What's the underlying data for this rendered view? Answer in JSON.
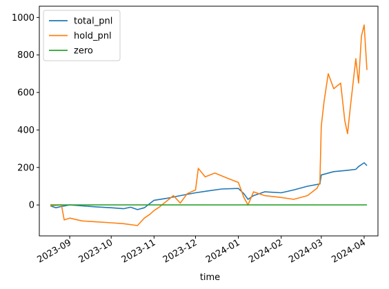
{
  "chart_data": {
    "type": "line",
    "title": "",
    "xlabel": "time",
    "ylabel": "",
    "grid": false,
    "legend_position": "top-left",
    "xlim": [
      "2023-08-10",
      "2024-04-11"
    ],
    "ylim": [
      -165,
      1060
    ],
    "x_ticks": [
      "2023-09",
      "2023-10",
      "2023-11",
      "2023-12",
      "2024-01",
      "2024-02",
      "2024-03",
      "2024-04"
    ],
    "x_tick_dates": [
      "2023-09-01",
      "2023-10-01",
      "2023-11-01",
      "2023-12-01",
      "2024-01-01",
      "2024-02-01",
      "2024-03-01",
      "2024-04-01"
    ],
    "y_ticks": [
      0,
      200,
      400,
      600,
      800,
      1000
    ],
    "series": [
      {
        "name": "total_pnl",
        "color": "#1f77b4",
        "x": [
          "2023-08-18",
          "2023-08-22",
          "2023-08-26",
          "2023-09-01",
          "2023-09-10",
          "2023-09-20",
          "2023-10-01",
          "2023-10-10",
          "2023-10-15",
          "2023-10-20",
          "2023-10-25",
          "2023-11-01",
          "2023-11-10",
          "2023-11-20",
          "2023-12-01",
          "2023-12-10",
          "2023-12-20",
          "2024-01-01",
          "2024-01-05",
          "2024-01-08",
          "2024-01-12",
          "2024-01-20",
          "2024-02-01",
          "2024-02-10",
          "2024-02-20",
          "2024-02-29",
          "2024-03-01",
          "2024-03-10",
          "2024-03-20",
          "2024-03-26",
          "2024-03-28",
          "2024-04-01",
          "2024-04-03"
        ],
        "y": [
          -5,
          -15,
          -8,
          0,
          -5,
          -10,
          -15,
          -20,
          -12,
          -25,
          -15,
          25,
          35,
          50,
          65,
          75,
          85,
          88,
          60,
          30,
          50,
          70,
          65,
          80,
          100,
          112,
          160,
          178,
          185,
          190,
          205,
          225,
          210
        ]
      },
      {
        "name": "hold_pnl",
        "color": "#ff7f0e",
        "x": [
          "2023-08-18",
          "2023-08-26",
          "2023-08-28",
          "2023-09-01",
          "2023-09-10",
          "2023-09-20",
          "2023-10-01",
          "2023-10-10",
          "2023-10-20",
          "2023-10-25",
          "2023-10-29",
          "2023-11-01",
          "2023-11-05",
          "2023-11-10",
          "2023-11-15",
          "2023-11-20",
          "2023-11-25",
          "2023-12-01",
          "2023-12-03",
          "2023-12-08",
          "2023-12-15",
          "2023-12-25",
          "2024-01-01",
          "2024-01-05",
          "2024-01-08",
          "2024-01-12",
          "2024-01-20",
          "2024-02-01",
          "2024-02-10",
          "2024-02-20",
          "2024-02-27",
          "2024-02-29",
          "2024-03-01",
          "2024-03-03",
          "2024-03-06",
          "2024-03-10",
          "2024-03-15",
          "2024-03-18",
          "2024-03-20",
          "2024-03-22",
          "2024-03-26",
          "2024-03-28",
          "2024-03-30",
          "2024-04-01",
          "2024-04-03"
        ],
        "y": [
          -5,
          0,
          -80,
          -70,
          -85,
          -90,
          -95,
          -100,
          -110,
          -70,
          -50,
          -30,
          -10,
          20,
          50,
          10,
          60,
          80,
          195,
          150,
          170,
          140,
          120,
          40,
          0,
          70,
          50,
          40,
          30,
          50,
          90,
          120,
          420,
          550,
          700,
          620,
          650,
          450,
          380,
          520,
          780,
          650,
          900,
          960,
          720
        ]
      },
      {
        "name": "zero",
        "color": "#2ca02c",
        "x": [
          "2023-08-18",
          "2024-04-03"
        ],
        "y": [
          0,
          0
        ]
      }
    ]
  }
}
